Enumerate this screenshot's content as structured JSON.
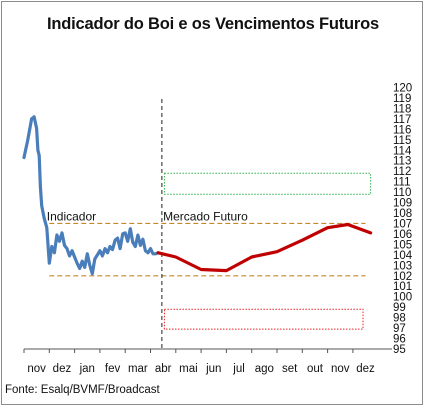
{
  "chart_data": {
    "type": "line",
    "title": "Indicador do Boi e os Vencimentos Futuros",
    "source": "Fonte: Esalq/BVMF/Broadcast",
    "xlabel": "",
    "ylabel": "",
    "x_tick_labels": [
      "nov",
      "dez",
      "jan",
      "fev",
      "mar",
      "abr",
      "mai",
      "jun",
      "jul",
      "ago",
      "set",
      "out",
      "nov",
      "dez"
    ],
    "ylim": [
      95,
      120
    ],
    "y_ticks": [
      95,
      96,
      97,
      98,
      99,
      100,
      101,
      102,
      103,
      104,
      105,
      106,
      107,
      108,
      109,
      110,
      111,
      112,
      113,
      114,
      115,
      116,
      117,
      118,
      119,
      120
    ],
    "annotations": [
      {
        "text": "Indicador",
        "x": 0.9,
        "y": 106.9
      },
      {
        "text": "Mercado Futuro",
        "x": 5.5,
        "y": 106.9
      }
    ],
    "series": [
      {
        "color": "#4a7ebb",
        "x": [
          0.0,
          0.15,
          0.3,
          0.4,
          0.5,
          0.55,
          0.6,
          0.65,
          0.7,
          0.8,
          0.9,
          1.0,
          1.1,
          1.2,
          1.3,
          1.4,
          1.5,
          1.6,
          1.7,
          1.8,
          1.9,
          2.0,
          2.1,
          2.2,
          2.3,
          2.4,
          2.5,
          2.6,
          2.7,
          2.8,
          2.9,
          3.0,
          3.1,
          3.2,
          3.3,
          3.4,
          3.5,
          3.6,
          3.7,
          3.8,
          3.9,
          4.0,
          4.1,
          4.2,
          4.3,
          4.4,
          4.5,
          4.6,
          4.7,
          4.8,
          4.9,
          5.0,
          5.1,
          5.2,
          5.3
        ],
        "y": [
          113.3,
          115.0,
          117.0,
          117.2,
          116.1,
          114.0,
          113.5,
          110.5,
          108.7,
          107.5,
          106.6,
          103.2,
          104.8,
          104.2,
          105.9,
          105.3,
          106.1,
          104.9,
          104.6,
          103.9,
          104.4,
          103.8,
          103.2,
          102.7,
          103.4,
          102.8,
          104.1,
          103.0,
          102.2,
          103.6,
          104.0,
          104.4,
          103.9,
          104.6,
          104.2,
          104.8,
          104.5,
          105.4,
          105.6,
          104.6,
          106.0,
          106.1,
          105.3,
          106.5,
          105.2,
          104.8,
          105.9,
          104.9,
          105.5,
          104.4,
          104.2,
          104.6,
          104.1,
          104.1,
          104.2
        ]
      },
      {
        "color": "#c00000",
        "x": [
          5.3,
          6.0,
          7.0,
          8.0,
          9.0,
          10.0,
          11.0,
          12.0,
          12.8,
          13.7
        ],
        "y": [
          104.2,
          103.8,
          102.6,
          102.5,
          103.8,
          104.3,
          105.4,
          106.6,
          106.9,
          106.1
        ]
      }
    ],
    "reference_lines": [
      {
        "kind": "horizontal",
        "y": 107.0,
        "x_range": [
          1.0,
          13.5
        ],
        "color": "#c28a2a",
        "style": "dashed"
      },
      {
        "kind": "horizontal",
        "y": 102.0,
        "x_range": [
          1.0,
          13.5
        ],
        "color": "#c28a2a",
        "style": "dashed"
      },
      {
        "kind": "vertical",
        "x": 5.45,
        "y_range": [
          95.0,
          118.9
        ],
        "color": "#222222",
        "style": "dashed"
      }
    ],
    "boxes": [
      {
        "x_range": [
          5.55,
          13.7
        ],
        "y_range": [
          109.8,
          111.8
        ],
        "color": "#2db34a",
        "style": "dotted"
      },
      {
        "x_range": [
          5.55,
          13.4
        ],
        "y_range": [
          96.9,
          98.8
        ],
        "color": "#e32222",
        "style": "dotted"
      }
    ],
    "grid": false,
    "legend": "none",
    "y_axis_position": "right"
  }
}
